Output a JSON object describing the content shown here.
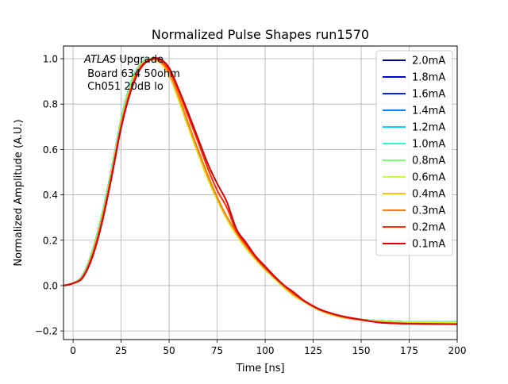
{
  "chart_data": {
    "type": "line",
    "title": "Normalized Pulse Shapes run1570",
    "xlabel": "Time [ns]",
    "ylabel": "Normalized Amplitude (A.U.)",
    "xlim": [
      -5,
      200
    ],
    "ylim": [
      -0.238,
      1.056
    ],
    "xticks": [
      0,
      25,
      50,
      75,
      100,
      125,
      150,
      175,
      200
    ],
    "xtick_labels": [
      "0",
      "25",
      "50",
      "75",
      "100",
      "125",
      "150",
      "175",
      "200"
    ],
    "yticks": [
      -0.2,
      0.0,
      0.2,
      0.4,
      0.6,
      0.8,
      1.0
    ],
    "ytick_labels": [
      "−0.2",
      "0.0",
      "0.2",
      "0.4",
      "0.6",
      "0.8",
      "1.0"
    ],
    "grid": true,
    "legend_position": "top-right",
    "annotation": {
      "italic": "ATLAS",
      "line1_rest": " Upgrade",
      "line2": " Board 634 50ohm",
      "line3": " Ch051 20dB lo"
    },
    "x": [
      -5,
      0,
      5,
      10,
      15,
      20,
      25,
      30,
      35,
      40,
      45,
      50,
      55,
      60,
      65,
      70,
      75,
      80,
      85,
      90,
      95,
      100,
      105,
      110,
      115,
      120,
      125,
      130,
      140,
      150,
      160,
      175,
      200
    ],
    "series": [
      {
        "name": "2.0mA",
        "color": "#00008f",
        "values": [
          0.0,
          0.01,
          0.045,
          0.15,
          0.31,
          0.51,
          0.73,
          0.89,
          0.975,
          1.0,
          0.99,
          0.93,
          0.82,
          0.7,
          0.585,
          0.475,
          0.38,
          0.295,
          0.225,
          0.165,
          0.115,
          0.07,
          0.03,
          -0.01,
          -0.045,
          -0.07,
          -0.095,
          -0.115,
          -0.14,
          -0.15,
          -0.155,
          -0.16,
          -0.16
        ]
      },
      {
        "name": "1.8mA",
        "color": "#0000d6",
        "values": [
          0.0,
          0.01,
          0.045,
          0.15,
          0.31,
          0.51,
          0.73,
          0.89,
          0.975,
          1.0,
          0.99,
          0.93,
          0.82,
          0.7,
          0.585,
          0.475,
          0.38,
          0.295,
          0.225,
          0.165,
          0.115,
          0.07,
          0.03,
          -0.01,
          -0.045,
          -0.07,
          -0.095,
          -0.115,
          -0.14,
          -0.15,
          -0.155,
          -0.16,
          -0.16
        ]
      },
      {
        "name": "1.6mA",
        "color": "#0025ff",
        "values": [
          0.0,
          0.01,
          0.045,
          0.15,
          0.31,
          0.51,
          0.73,
          0.89,
          0.975,
          1.0,
          0.99,
          0.93,
          0.82,
          0.7,
          0.585,
          0.475,
          0.38,
          0.295,
          0.225,
          0.165,
          0.115,
          0.07,
          0.03,
          -0.01,
          -0.045,
          -0.07,
          -0.095,
          -0.115,
          -0.14,
          -0.15,
          -0.155,
          -0.16,
          -0.16
        ]
      },
      {
        "name": "1.4mA",
        "color": "#0080ff",
        "values": [
          0.0,
          0.01,
          0.045,
          0.15,
          0.31,
          0.51,
          0.73,
          0.89,
          0.975,
          1.0,
          0.99,
          0.93,
          0.82,
          0.7,
          0.585,
          0.475,
          0.38,
          0.295,
          0.225,
          0.165,
          0.115,
          0.07,
          0.03,
          -0.01,
          -0.045,
          -0.07,
          -0.095,
          -0.115,
          -0.14,
          -0.15,
          -0.155,
          -0.16,
          -0.16
        ]
      },
      {
        "name": "1.2mA",
        "color": "#00d4ff",
        "values": [
          0.0,
          0.01,
          0.045,
          0.15,
          0.31,
          0.51,
          0.73,
          0.89,
          0.975,
          1.0,
          0.99,
          0.93,
          0.82,
          0.7,
          0.585,
          0.475,
          0.38,
          0.295,
          0.225,
          0.165,
          0.115,
          0.07,
          0.03,
          -0.01,
          -0.045,
          -0.07,
          -0.095,
          -0.115,
          -0.14,
          -0.15,
          -0.155,
          -0.16,
          -0.16
        ]
      },
      {
        "name": "1.0mA",
        "color": "#2bffcd",
        "values": [
          0.0,
          0.01,
          0.045,
          0.15,
          0.31,
          0.51,
          0.73,
          0.89,
          0.975,
          1.0,
          0.99,
          0.93,
          0.82,
          0.7,
          0.585,
          0.475,
          0.38,
          0.295,
          0.225,
          0.165,
          0.115,
          0.07,
          0.03,
          -0.01,
          -0.045,
          -0.07,
          -0.095,
          -0.115,
          -0.14,
          -0.15,
          -0.155,
          -0.16,
          -0.16
        ]
      },
      {
        "name": "0.8mA",
        "color": "#7dff7a",
        "values": [
          0.0,
          0.01,
          0.04,
          0.145,
          0.3,
          0.5,
          0.72,
          0.88,
          0.97,
          1.0,
          0.99,
          0.93,
          0.82,
          0.7,
          0.585,
          0.475,
          0.38,
          0.295,
          0.225,
          0.165,
          0.115,
          0.07,
          0.03,
          -0.01,
          -0.045,
          -0.07,
          -0.095,
          -0.115,
          -0.14,
          -0.15,
          -0.155,
          -0.16,
          -0.16
        ]
      },
      {
        "name": "0.6mA",
        "color": "#cdff2a",
        "values": [
          0.0,
          0.01,
          0.04,
          0.14,
          0.3,
          0.5,
          0.72,
          0.88,
          0.97,
          1.0,
          0.99,
          0.93,
          0.82,
          0.7,
          0.585,
          0.475,
          0.38,
          0.295,
          0.225,
          0.165,
          0.115,
          0.07,
          0.03,
          -0.01,
          -0.045,
          -0.07,
          -0.095,
          -0.115,
          -0.14,
          -0.15,
          -0.158,
          -0.162,
          -0.163
        ]
      },
      {
        "name": "0.4mA",
        "color": "#ffc400",
        "values": [
          0.0,
          0.01,
          0.04,
          0.14,
          0.295,
          0.49,
          0.71,
          0.87,
          0.965,
          0.995,
          0.985,
          0.93,
          0.825,
          0.705,
          0.59,
          0.48,
          0.385,
          0.3,
          0.23,
          0.17,
          0.12,
          0.075,
          0.035,
          -0.005,
          -0.04,
          -0.068,
          -0.093,
          -0.113,
          -0.138,
          -0.15,
          -0.16,
          -0.165,
          -0.167
        ]
      },
      {
        "name": "0.3mA",
        "color": "#ff8000",
        "values": [
          0.0,
          0.01,
          0.04,
          0.135,
          0.29,
          0.49,
          0.71,
          0.87,
          0.965,
          0.995,
          0.99,
          0.94,
          0.835,
          0.715,
          0.6,
          0.49,
          0.39,
          0.305,
          0.235,
          0.175,
          0.12,
          0.075,
          0.035,
          -0.005,
          -0.04,
          -0.068,
          -0.093,
          -0.113,
          -0.138,
          -0.152,
          -0.162,
          -0.167,
          -0.17
        ]
      },
      {
        "name": "0.2mA",
        "color": "#ff3000",
        "values": [
          0.0,
          0.01,
          0.035,
          0.13,
          0.28,
          0.48,
          0.7,
          0.86,
          0.96,
          0.995,
          0.995,
          0.95,
          0.855,
          0.745,
          0.635,
          0.52,
          0.42,
          0.345,
          0.24,
          0.18,
          0.125,
          0.08,
          0.035,
          0.0,
          -0.035,
          -0.065,
          -0.09,
          -0.11,
          -0.135,
          -0.15,
          -0.163,
          -0.168,
          -0.17
        ]
      },
      {
        "name": "0.1mA",
        "color": "#d60000",
        "values": [
          0.0,
          0.01,
          0.035,
          0.125,
          0.275,
          0.475,
          0.695,
          0.855,
          0.955,
          0.995,
          1.0,
          0.96,
          0.865,
          0.76,
          0.65,
          0.54,
          0.45,
          0.37,
          0.25,
          0.19,
          0.13,
          0.085,
          0.04,
          0.0,
          -0.03,
          -0.065,
          -0.09,
          -0.11,
          -0.135,
          -0.15,
          -0.163,
          -0.168,
          -0.17
        ]
      }
    ]
  }
}
